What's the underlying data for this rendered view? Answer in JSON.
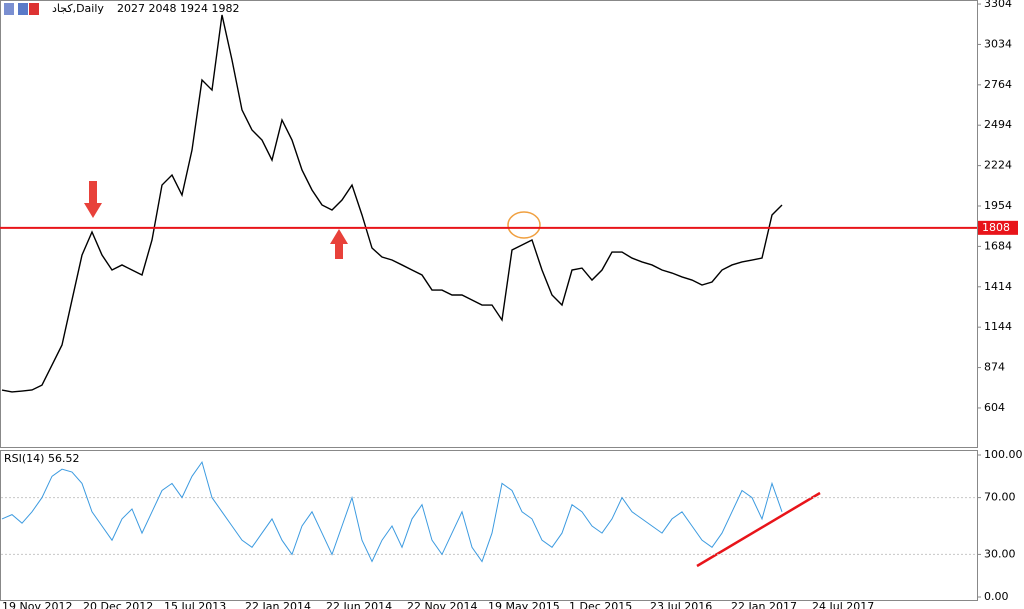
{
  "chart_data": [
    {
      "type": "line",
      "title": "کجاد,Daily",
      "subtitle": "2027 2048 1924 1982",
      "color": "#000000",
      "values": [
        724,
        711,
        717,
        724,
        757,
        891,
        1025,
        1326,
        1626,
        1780,
        1626,
        1526,
        1560,
        1526,
        1493,
        1727,
        2094,
        2161,
        2027,
        2328,
        2796,
        2729,
        3231,
        2930,
        2596,
        2462,
        2395,
        2261,
        2529,
        2395,
        2195,
        2061,
        1961,
        1927,
        1994,
        2094,
        1894,
        1673,
        1613,
        1593,
        1560,
        1526,
        1493,
        1392,
        1392,
        1359,
        1359,
        1326,
        1292,
        1292,
        1192,
        1660,
        1693,
        1727,
        1526,
        1359,
        1292,
        1526,
        1539,
        1459,
        1526,
        1646,
        1646,
        1606,
        1580,
        1560,
        1526,
        1506,
        1480,
        1459,
        1426,
        1446,
        1526,
        1560,
        1580,
        1593,
        1606,
        1894,
        1961
      ],
      "ylim": [
        343,
        3331
      ],
      "yticks": [
        604,
        874,
        1144,
        1414,
        1684,
        1954,
        2224,
        2494,
        2764,
        3034,
        3304
      ],
      "level": 1808,
      "level_color": "#e8141a"
    },
    {
      "type": "line",
      "title": "RSI(14) 56.52",
      "color": "#3d9be0",
      "values": [
        55,
        58,
        52,
        60,
        70,
        85,
        90,
        88,
        80,
        60,
        50,
        40,
        55,
        62,
        45,
        60,
        75,
        80,
        70,
        85,
        95,
        70,
        60,
        50,
        40,
        35,
        45,
        55,
        40,
        30,
        50,
        60,
        45,
        30,
        50,
        70,
        40,
        25,
        40,
        50,
        35,
        55,
        65,
        40,
        30,
        45,
        60,
        35,
        25,
        45,
        80,
        75,
        60,
        55,
        40,
        35,
        45,
        65,
        60,
        50,
        45,
        55,
        70,
        60,
        55,
        50,
        45,
        55,
        60,
        50,
        40,
        35,
        45,
        60,
        75,
        70,
        55,
        80,
        60
      ],
      "ylim": [
        0,
        100
      ],
      "yticks": [
        {
          "value": 0,
          "label": "0.00"
        },
        {
          "value": 30,
          "label": "30.00"
        },
        {
          "value": 70,
          "label": "70.00"
        },
        {
          "value": 100,
          "label": "100.00"
        }
      ],
      "grid": true,
      "x_labels": [
        "19 Nov 2012",
        "20 Dec 2012",
        "15 Jul 2013",
        "22 Jan 2014",
        "22 Jun 2014",
        "22 Nov 2014",
        "19 May 2015",
        "1 Dec 2015",
        "23 Jul 2016",
        "22 Jan 2017",
        "24 Jul 2017"
      ]
    }
  ]
}
